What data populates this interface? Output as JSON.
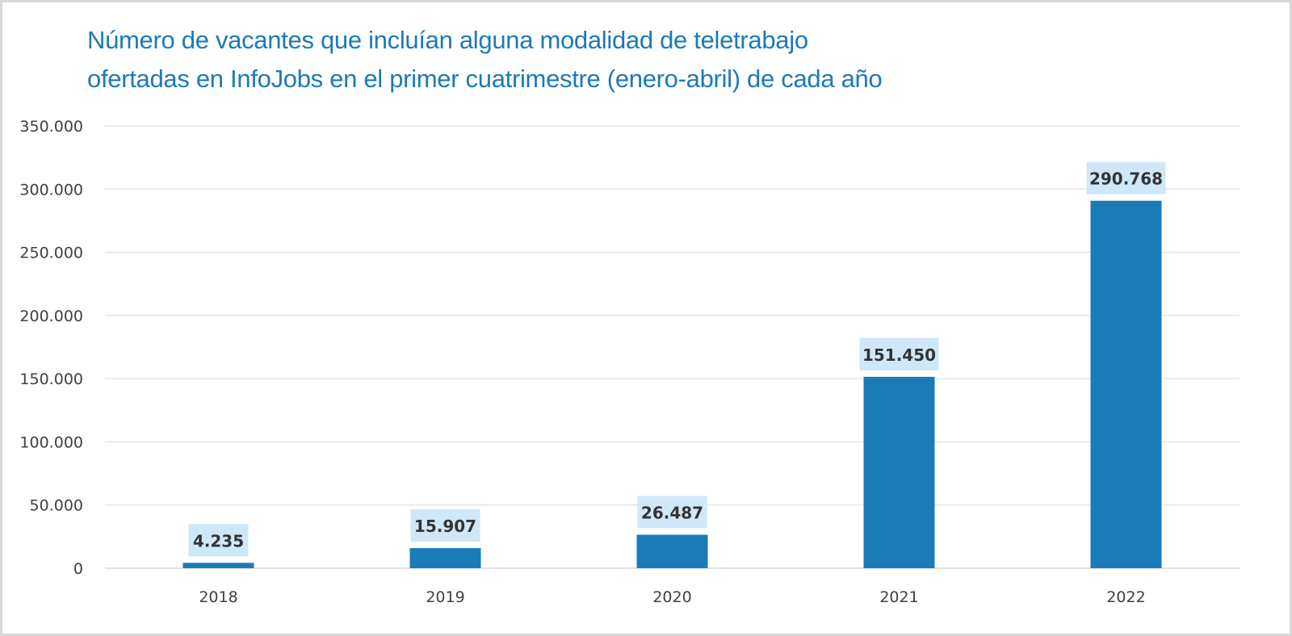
{
  "chart_data": {
    "type": "bar",
    "title": "Número de vacantes que incluían alguna modalidad de teletrabajo ofertadas en InfoJobs en el primer cuatrimestre (enero-abril) de cada año",
    "title_lines": [
      "Número de vacantes que incluían alguna modalidad de teletrabajo",
      "ofertadas en InfoJobs en el primer cuatrimestre (enero-abril) de cada año"
    ],
    "categories": [
      "2018",
      "2019",
      "2020",
      "2021",
      "2022"
    ],
    "values": [
      4235,
      15907,
      26487,
      151450,
      290768
    ],
    "data_labels": [
      "4.235",
      "15.907",
      "26.487",
      "151.450",
      "290.768"
    ],
    "xlabel": "",
    "ylabel": "",
    "ylim": [
      0,
      350000
    ],
    "yticks": [
      0,
      50000,
      100000,
      150000,
      200000,
      250000,
      300000,
      350000
    ],
    "ytick_labels": [
      "0",
      "50.000",
      "100.000",
      "150.000",
      "200.000",
      "250.000",
      "300.000",
      "350.000"
    ],
    "grid": true,
    "legend": "none",
    "colors": {
      "bar": "#1a7cb7",
      "data_label_bg": "#cfe8f8",
      "title": "#1b7ab8",
      "grid": "#d9d9d9"
    }
  }
}
